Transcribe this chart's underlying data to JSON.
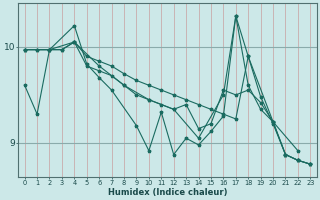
{
  "xlabel": "Humidex (Indice chaleur)",
  "bg_color": "#cce8e8",
  "line_color": "#1a6b60",
  "xlim": [
    -0.5,
    23.5
  ],
  "ylim": [
    8.65,
    10.45
  ],
  "yticks": [
    9,
    10
  ],
  "xticks": [
    0,
    1,
    2,
    3,
    4,
    5,
    6,
    7,
    8,
    9,
    10,
    11,
    12,
    13,
    14,
    15,
    16,
    17,
    18,
    19,
    20,
    21,
    22,
    23
  ],
  "series": [
    {
      "x": [
        0,
        1,
        2,
        3,
        4,
        5,
        6,
        7,
        8,
        9,
        10,
        11,
        12,
        13,
        14,
        15,
        16,
        17,
        18,
        19,
        20,
        21,
        22,
        23
      ],
      "y": [
        9.97,
        9.97,
        9.97,
        9.97,
        10.05,
        9.9,
        9.85,
        9.8,
        9.72,
        9.65,
        9.6,
        9.55,
        9.5,
        9.45,
        9.4,
        9.35,
        9.3,
        9.25,
        9.9,
        9.48,
        9.2,
        8.88,
        8.82,
        8.78
      ]
    },
    {
      "x": [
        0,
        1,
        2,
        3,
        4,
        5,
        6,
        7,
        8,
        9,
        10,
        11,
        12,
        13,
        14,
        15,
        16,
        17,
        18,
        19,
        20,
        21,
        22,
        23
      ],
      "y": [
        9.97,
        9.97,
        9.97,
        9.97,
        10.05,
        9.8,
        9.75,
        9.7,
        9.6,
        9.5,
        9.45,
        9.4,
        9.35,
        9.4,
        9.15,
        9.2,
        9.55,
        9.5,
        9.55,
        9.42,
        9.22,
        8.88,
        8.82,
        8.78
      ]
    },
    {
      "x": [
        0,
        2,
        4,
        6,
        8,
        10,
        12,
        14,
        16,
        17,
        18,
        20,
        22
      ],
      "y": [
        9.97,
        9.97,
        10.05,
        9.8,
        9.6,
        9.45,
        9.35,
        9.05,
        9.5,
        10.32,
        9.9,
        9.22,
        8.92
      ]
    },
    {
      "x": [
        0,
        1,
        2,
        4,
        5,
        6,
        7,
        9,
        10,
        11,
        12,
        13,
        14,
        15,
        16,
        17,
        18,
        19,
        20,
        21,
        22,
        23
      ],
      "y": [
        9.6,
        9.3,
        9.97,
        10.22,
        9.82,
        9.68,
        9.55,
        9.18,
        8.92,
        9.32,
        8.88,
        9.05,
        8.98,
        9.12,
        9.28,
        10.32,
        9.6,
        9.35,
        9.22,
        8.88,
        8.82,
        8.78
      ]
    }
  ]
}
